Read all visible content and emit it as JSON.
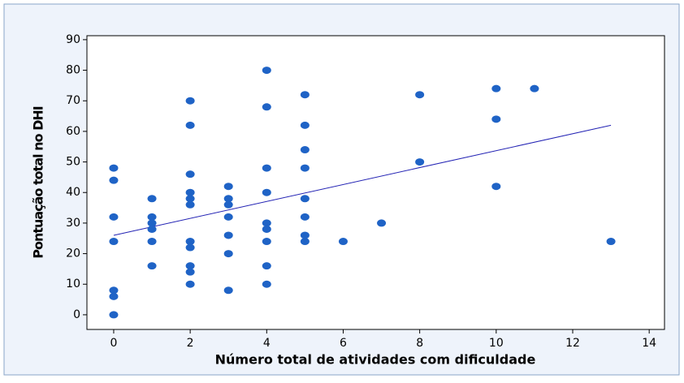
{
  "chart_data": {
    "type": "scatter",
    "xlabel": "Número total de atividades com  dificuldade",
    "ylabel": "Pontuação total no DHI",
    "x": [
      0,
      0,
      0,
      0,
      0,
      0,
      0,
      1,
      1,
      1,
      1,
      1,
      1,
      2,
      2,
      2,
      2,
      2,
      2,
      2,
      2,
      2,
      2,
      2,
      3,
      3,
      3,
      3,
      3,
      3,
      3,
      4,
      4,
      4,
      4,
      4,
      4,
      4,
      4,
      4,
      5,
      5,
      5,
      5,
      5,
      5,
      5,
      5,
      6,
      7,
      8,
      8,
      10,
      10,
      10,
      11,
      13
    ],
    "values": [
      48,
      44,
      32,
      24,
      8,
      6,
      0,
      38,
      32,
      30,
      28,
      24,
      16,
      70,
      62,
      46,
      40,
      38,
      36,
      24,
      22,
      16,
      14,
      10,
      42,
      38,
      36,
      32,
      26,
      20,
      8,
      80,
      68,
      48,
      40,
      30,
      28,
      24,
      16,
      10,
      72,
      62,
      54,
      48,
      38,
      32,
      26,
      24,
      24,
      30,
      72,
      50,
      74,
      64,
      42,
      74,
      24
    ],
    "color": "#1f63c6",
    "fit_line": {
      "x": [
        0,
        13
      ],
      "values": [
        26,
        62
      ],
      "color": "#2323b4"
    },
    "xlim": [
      -0.7,
      14.4
    ],
    "ylim": [
      -4.8,
      91.3
    ],
    "xticks": [
      0,
      2,
      4,
      6,
      8,
      10,
      12,
      14
    ],
    "yticks": [
      0,
      10,
      20,
      30,
      40,
      50,
      60,
      70,
      80,
      90
    ]
  }
}
